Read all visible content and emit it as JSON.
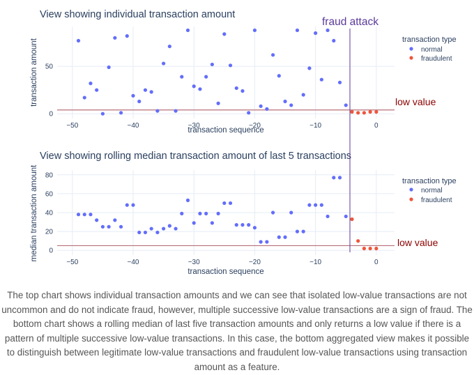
{
  "annotations": {
    "fraud_attack": "fraud attack",
    "low_value": "low value",
    "fraud_color": "#5b3a9b",
    "low_value_color": "#8b0000"
  },
  "caption": "The top chart shows individual transaction amounts and we can see that isolated low-value transactions are not uncommon and do not indicate fraud, however, multiple successive low-value transactions are a sign of fraud. The bottom chart shows a rolling median of last five transaction amounts and only returns a low value if there is a pattern of multiple successive low-value transactions. In this case, the bottom aggregated view makes it possible to distinguish between legitimate low-value transactions and fraudulent low-value transactions using transaction amount as a feature.",
  "chart_data": [
    {
      "type": "scatter",
      "title": "View showing individual transaction amount",
      "xlabel": "transaction sequence",
      "ylabel": "transaction amount",
      "xlim": [
        -52.5,
        3
      ],
      "ylim": [
        -5,
        92
      ],
      "x_ticks": [
        -50,
        -40,
        -30,
        -20,
        -10,
        0
      ],
      "y_ticks": [
        0,
        50
      ],
      "legend_title": "transaction type",
      "legend_position": "right",
      "grid": true,
      "reference_line_y": 4,
      "fraud_line_x": -4,
      "series": [
        {
          "name": "normal",
          "color": "#636efa",
          "x": [
            -49,
            -48,
            -47,
            -46,
            -45,
            -44,
            -43,
            -42,
            -41,
            -40,
            -39,
            -38,
            -37,
            -36,
            -35,
            -34,
            -33,
            -32,
            -31,
            -30,
            -29,
            -28,
            -27,
            -26,
            -25,
            -24,
            -23,
            -22,
            -21,
            -20,
            -19,
            -18,
            -17,
            -16,
            -15,
            -14,
            -13,
            -12,
            -11,
            -10,
            -9,
            -8,
            -7,
            -6,
            -5
          ],
          "y": [
            77,
            17,
            32,
            25,
            0,
            49,
            80,
            1,
            82,
            19,
            13,
            25,
            23,
            3,
            53,
            71,
            3,
            39,
            88,
            29,
            26,
            39,
            52,
            11,
            84,
            51,
            27,
            24,
            1,
            88,
            8,
            5,
            62,
            40,
            13,
            9,
            88,
            20,
            48,
            85,
            36,
            88,
            77,
            33,
            9
          ]
        },
        {
          "name": "fraudulent",
          "color": "#ef553b",
          "x": [
            -4,
            -3,
            -2,
            -1,
            0
          ],
          "y": [
            2,
            1,
            1,
            2,
            2
          ]
        }
      ]
    },
    {
      "type": "scatter",
      "title": "View showing rolling median transaction amount of last 5 transactions",
      "xlabel": "transaction sequence",
      "ylabel": "median transaction amount",
      "xlim": [
        -52.5,
        3
      ],
      "ylim": [
        -5,
        85
      ],
      "x_ticks": [
        -50,
        -40,
        -30,
        -20,
        -10,
        0
      ],
      "y_ticks": [
        0,
        20,
        40,
        60,
        80
      ],
      "legend_title": "transaction type",
      "legend_position": "right",
      "grid": true,
      "reference_line_y": 5,
      "fraud_line_x": -4,
      "series": [
        {
          "name": "normal",
          "color": "#636efa",
          "x": [
            -49,
            -48,
            -47,
            -46,
            -45,
            -44,
            -43,
            -42,
            -41,
            -40,
            -39,
            -38,
            -37,
            -36,
            -35,
            -34,
            -33,
            -32,
            -31,
            -30,
            -29,
            -28,
            -27,
            -26,
            -25,
            -24,
            -23,
            -22,
            -21,
            -20,
            -19,
            -18,
            -17,
            -16,
            -15,
            -14,
            -13,
            -12,
            -11,
            -10,
            -9,
            -8,
            -7,
            -6,
            -5
          ],
          "y": [
            38,
            38,
            38,
            32,
            25,
            25,
            32,
            25,
            48,
            48,
            19,
            19,
            23,
            19,
            23,
            26,
            23,
            39,
            53,
            29,
            39,
            39,
            29,
            39,
            50,
            50,
            27,
            27,
            27,
            24,
            9,
            9,
            40,
            14,
            14,
            40,
            20,
            20,
            48,
            48,
            48,
            36,
            77,
            77,
            36
          ]
        },
        {
          "name": "fraudulent",
          "color": "#ef553b",
          "x": [
            -4,
            -3,
            -2,
            -1,
            0
          ],
          "y": [
            33,
            10,
            2,
            2,
            2
          ]
        }
      ]
    }
  ]
}
